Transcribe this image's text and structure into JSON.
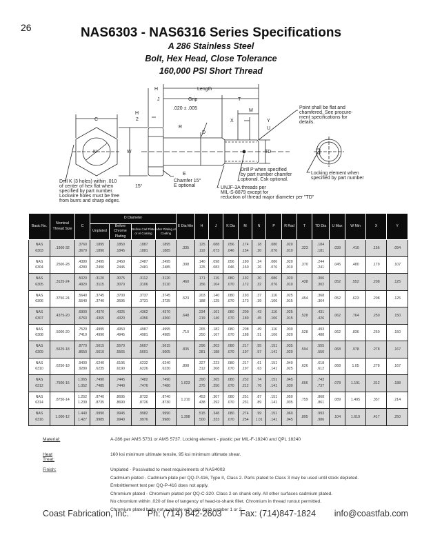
{
  "page_number": "26",
  "title": "NAS6303 - NAS6316 Series Specifications",
  "subtitles": [
    "A 286 Stainless Steel",
    "Bolt, Hex Head, Close Tolerance",
    "160,000 PSI Short Thread"
  ],
  "drawing": {
    "labels": {
      "C": "C",
      "N": "N",
      "W": "W",
      "H": "H",
      "J": "J",
      "H2_num": "H",
      "H2_den": "2",
      "length": "Length",
      "grip": "Grip",
      "fillet": ".020 ± .005",
      "R": "R",
      "D": "D",
      "E": "E",
      "T": "T",
      "M": "M",
      "X": "X",
      "Y": "Y",
      "U": "U",
      "TD": "TD",
      "angle": "15°"
    },
    "notes": {
      "drill_k": [
        "Drill K (3 holes) within .010",
        "of center of hex flat when",
        "specified by part number.",
        "Lockwire holes must be free",
        "from burrs and sharp edges."
      ],
      "chamfer": [
        "Chamfer 15°",
        "E optional"
      ],
      "drill_p": [
        "Drill P when specified",
        "by part number chamfer",
        "optional.  Csk optional."
      ],
      "threads": [
        "UNJF-3A threads per",
        "MIL-S-8879 except for",
        "reduction of thread major diameter per \"TD\""
      ],
      "point": [
        "Point shall be flat and",
        "chamfered.  See procure-",
        "ment specifications for",
        "details."
      ],
      "locking": [
        "Locking element when",
        "specified by part number"
      ]
    }
  },
  "table": {
    "headers": {
      "basic": "Basic No.",
      "thread": "Nominal Thread Size",
      "c": "C",
      "d_group": "D Diameter",
      "unplated": "Unplated",
      "before_chrome": "Before Chrome Plating",
      "before_cad": "Before Cad Plate or Al Coating",
      "after": "After Plating or Coating",
      "e": "E Dia Min",
      "h": "H",
      "j": "J",
      "k": "K Dia",
      "m": "M",
      "n": "N",
      "p": "P",
      "r": "R Rad",
      "t": "T",
      "td": "TD Dia",
      "u": "U Max",
      "w": "W Min",
      "x": "X",
      "y": "Y"
    },
    "rows": [
      [
        "NAS 6303",
        ".1900-32",
        ".3760 .3670",
        ".1895 .1890",
        ".1850 .1845",
        ".1887 .1881",
        ".1895 .1885",
        ".335",
        ".125 .110",
        ".088 .073",
        ".056 .046",
        ".174 .154",
        ".18 .20",
        ".080 .070",
        ".020 .010",
        ".323",
        ".184 .181",
        ".039",
        ".410",
        ".156",
        ".094"
      ],
      [
        "NAS 6304",
        ".2500-28",
        ".4380 .4280",
        ".2495 .2490",
        ".2450 .2445",
        ".2487 .2481",
        ".2495 .2485",
        ".398",
        ".140 .125",
        ".098 .083",
        ".056 .046",
        ".180 .160",
        ".24 .26",
        ".086 .076",
        ".020 .010",
        ".370",
        ".244 .241",
        ".045",
        ".480",
        ".179",
        ".107"
      ],
      [
        "NAS 6305",
        ".3125-24",
        ".5020 .4920",
        ".3120 .3115",
        ".3075 .3070",
        ".3112 .3106",
        ".3120 .3110",
        ".460",
        ".171 .156",
        ".119 .104",
        ".080 .070",
        ".192 .172",
        ".30 .32",
        ".086 .076",
        ".020 .010",
        ".438",
        ".306 .302",
        ".052",
        ".552",
        ".208",
        ".125"
      ],
      [
        "NAS 6306",
        ".3750-24",
        ".5640 .5540",
        ".3745 .3740",
        ".3700 .3695",
        ".3737 .3731",
        ".3745 .3735",
        ".523",
        ".203 .188",
        ".140 .125",
        ".080 .070",
        ".193 .173",
        ".37 .39",
        ".116 .106",
        ".025 .015",
        ".454",
        ".368 .364",
        ".052",
        ".623",
        ".208",
        ".125"
      ],
      [
        "NAS 6307",
        ".4375-20",
        ".6900 .6760",
        ".4370 .4365",
        ".4325 .4320",
        ".4362 .4356",
        ".4370 .4360",
        ".648",
        ".234 .219",
        ".161 .146",
        ".080 .070",
        ".209 .189",
        ".43 .45",
        ".116 .106",
        ".025 .015",
        ".528",
        ".431 .426",
        ".062",
        ".764",
        ".250",
        ".150"
      ],
      [
        "NAS 6308",
        ".5000-20",
        ".7520 .7410",
        ".4995 .4990",
        ".4950 .4945",
        ".4987 .4981",
        ".4995 .4985",
        ".710",
        ".265 .250",
        ".182 .167",
        ".080 .070",
        ".208 .188",
        ".49 .51",
        ".116 .106",
        ".030 .020",
        ".528",
        ".493 .488",
        ".062",
        ".836",
        ".250",
        ".150"
      ],
      [
        "NAS 6309",
        ".5625-18",
        ".8770 .8650",
        ".5615 .5610",
        ".5570 .5565",
        ".5607 .5601",
        ".5615 .5605",
        ".835",
        ".296 .281",
        ".203 .188",
        ".080 .070",
        ".217 .197",
        ".55 .57",
        ".151 .141",
        ".035 .020",
        ".594",
        ".555 .550",
        ".068",
        ".978",
        ".278",
        ".167"
      ],
      [
        "NAS 6310",
        ".6250-18",
        ".9400 .9280",
        ".6240 .6235",
        ".6195 .6190",
        ".6232 .6226",
        ".6240 .6230",
        ".898",
        ".327 .312",
        ".223 .208",
        ".080 .070",
        ".217 .197",
        ".61 .63",
        ".151 .141",
        ".040 .025",
        ".626",
        ".618 .612",
        ".068",
        "1.05",
        ".278",
        ".167"
      ],
      [
        "NAS 6312",
        ".7500-16",
        "1.065 1.052",
        ".7490 .7485",
        ".7445 .7440",
        ".7482 .7476",
        ".7490 .7480",
        "1.023",
        ".390 .375",
        ".265 .250",
        ".080 .070",
        ".232 .212",
        ".74 .76",
        ".151 .141",
        ".045 .030",
        ".666",
        ".743 .737",
        ".078",
        "1.191",
        ".312",
        ".188"
      ],
      [
        "NAS 6314",
        ".8750-14",
        "1.252 1.239",
        ".8740 .8735",
        ".8695 .8690",
        ".8732 .8726",
        ".8740 .8730",
        "1.210",
        ".453 .438",
        ".307 .292",
        ".080 .070",
        ".251 .231",
        ".87 .89",
        ".151 .141",
        ".050 .035",
        ".759",
        ".868 .861",
        ".089",
        "1.405",
        ".357",
        ".214"
      ],
      [
        "NAS 6316",
        "1.000-12",
        "1.440 1.427",
        ".9990 .9985",
        ".9945 .9940",
        ".9982 .9976",
        ".9990 .9980",
        "1.398",
        ".515 .500",
        ".348 .333",
        ".080 .070",
        ".274 .254",
        ".99 1.01",
        ".151 .141",
        ".060 .045",
        ".895",
        ".993 .986",
        ".104",
        "1.619",
        ".417",
        ".250"
      ]
    ]
  },
  "notes": [
    {
      "label": "Material:",
      "lines": [
        "A-286 per AMS 5731 or AMS 5737. Locking element - plastic per MIL-F-18240 and QPL 18240"
      ]
    },
    {
      "label": "Heat Treat:",
      "lines": [
        "160 ksi minimum ultimate tensile, 95 ksi minimum ultimate shear."
      ]
    },
    {
      "label": "Finish:",
      "lines": [
        "Unplated - Possivated to meet requirements of NAS4003",
        "Cadmium plated - Cadmium plate per QQ-P-416, Type II, Class 2. Parts plated to Class 3 may be used until stock depleted.",
        "Embrittlement test per QQ-P-416 does not apply.",
        "Chromium plated - Chromium plated per QQ-C-320. Class 2 on shank only. All other surfaces cadmium plated.",
        "No chromium within .020 of line of tangency of head-to-shank fillet. Chromium in thread runout permitted.",
        "Chromium plated bolts not available with grip dash number 1 or 2."
      ]
    }
  ],
  "footer": {
    "company": "Coast Fabrication, Inc.",
    "phone": "Ph: (714) 842-2603",
    "fax": "Fax: (714)847-1824",
    "email": "info@coastfab.com"
  },
  "colors": {
    "header_bg": "#0c0c0c",
    "row_shade": "#d8d8d8"
  }
}
